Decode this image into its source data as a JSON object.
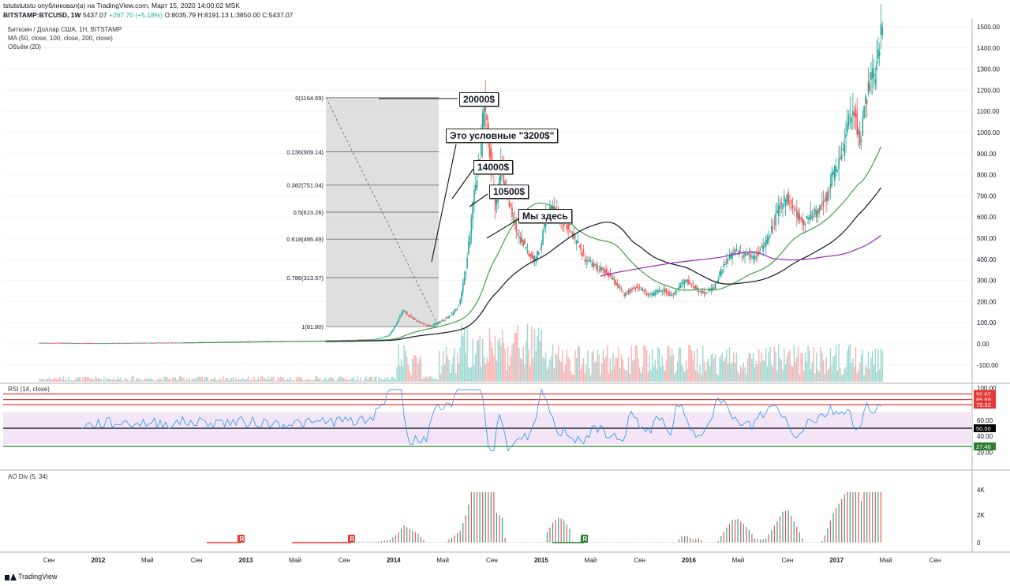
{
  "header": {
    "line1": "tstutstutstu опубликовал(а) на TradingView.com, Март 15, 2020 14:00:02 MSK",
    "symbol": "BITSTAMP:BTCUSD, 1W",
    "price": "5437.07",
    "change": "+267.70 (+5.18%)",
    "ohlc": "O:8035.79 H:8191.13 L:3850.00 C:5437.07"
  },
  "legend": {
    "main_title": "Биткоин / Доллар США, 1Н, BITSTAMP",
    "ma": "MA (50, close, 100, close, 200, close)",
    "volume": "Объём (20)",
    "rsi": "RSI (14, close)",
    "ao": "AO Div (5, 34)"
  },
  "callouts": {
    "c20000": "20000$",
    "c3200": "Это условные \"3200$\"",
    "c14000": "14000$",
    "c10500": "10500$",
    "here": "Мы здесь"
  },
  "brand": "TradingView",
  "colors": {
    "up": "#26a69a",
    "down": "#ef5350",
    "ma50": "#43a047",
    "ma100": "#131722",
    "ma200": "#9c27b0",
    "rsi_line": "#2196f3",
    "rsi_band": "#f3e5f5",
    "fib_zone": "#d9d9d9"
  },
  "chart_data": [
    {
      "type": "candlestick",
      "title": "Биткоин / Доллар США, 1Н, BITSTAMP",
      "y_ticks": [
        "1500.00",
        "1400.00",
        "1300.00",
        "1200.00",
        "1100.00",
        "1000.00",
        "900.00",
        "800.00",
        "700.00",
        "600.00",
        "500.00",
        "400.00",
        "300.00",
        "200.00",
        "100.00",
        "0.00",
        "-100.00"
      ],
      "x_ticks": [
        "Сен",
        "2012",
        "Май",
        "Сен",
        "2013",
        "Май",
        "Сен",
        "2014",
        "Май",
        "Сен",
        "2015",
        "Май",
        "Сен",
        "2016",
        "Май",
        "Сен",
        "2017",
        "Май",
        "Сен"
      ],
      "price_path": [
        [
          0,
          5
        ],
        [
          20,
          4
        ],
        [
          40,
          3
        ],
        [
          60,
          4
        ],
        [
          80,
          5
        ],
        [
          100,
          6
        ],
        [
          120,
          8
        ],
        [
          140,
          10
        ],
        [
          160,
          12
        ],
        [
          180,
          13
        ],
        [
          200,
          14
        ],
        [
          220,
          18
        ],
        [
          240,
          22
        ],
        [
          250,
          40
        ],
        [
          255,
          90
        ],
        [
          260,
          160
        ],
        [
          265,
          130
        ],
        [
          270,
          110
        ],
        [
          275,
          95
        ],
        [
          280,
          85
        ],
        [
          285,
          100
        ],
        [
          290,
          115
        ],
        [
          295,
          140
        ],
        [
          300,
          180
        ],
        [
          305,
          350
        ],
        [
          310,
          650
        ],
        [
          315,
          900
        ],
        [
          318,
          1150
        ],
        [
          322,
          900
        ],
        [
          326,
          650
        ],
        [
          330,
          850
        ],
        [
          334,
          720
        ],
        [
          338,
          600
        ],
        [
          342,
          520
        ],
        [
          346,
          480
        ],
        [
          350,
          420
        ],
        [
          354,
          400
        ],
        [
          358,
          450
        ],
        [
          362,
          600
        ],
        [
          366,
          640
        ],
        [
          370,
          620
        ],
        [
          374,
          580
        ],
        [
          378,
          560
        ],
        [
          382,
          500
        ],
        [
          386,
          460
        ],
        [
          390,
          400
        ],
        [
          394,
          380
        ],
        [
          398,
          360
        ],
        [
          402,
          350
        ],
        [
          406,
          330
        ],
        [
          410,
          300
        ],
        [
          414,
          270
        ],
        [
          418,
          230
        ],
        [
          422,
          250
        ],
        [
          426,
          270
        ],
        [
          430,
          260
        ],
        [
          434,
          240
        ],
        [
          438,
          230
        ],
        [
          442,
          250
        ],
        [
          446,
          260
        ],
        [
          450,
          230
        ],
        [
          454,
          240
        ],
        [
          458,
          280
        ],
        [
          462,
          300
        ],
        [
          466,
          280
        ],
        [
          470,
          260
        ],
        [
          474,
          240
        ],
        [
          478,
          250
        ],
        [
          482,
          270
        ],
        [
          486,
          330
        ],
        [
          490,
          380
        ],
        [
          494,
          420
        ],
        [
          498,
          440
        ],
        [
          502,
          420
        ],
        [
          506,
          430
        ],
        [
          510,
          410
        ],
        [
          514,
          440
        ],
        [
          518,
          470
        ],
        [
          522,
          520
        ],
        [
          526,
          600
        ],
        [
          530,
          660
        ],
        [
          534,
          700
        ],
        [
          538,
          640
        ],
        [
          542,
          600
        ],
        [
          546,
          580
        ],
        [
          550,
          600
        ],
        [
          554,
          620
        ],
        [
          558,
          650
        ],
        [
          562,
          700
        ],
        [
          566,
          780
        ],
        [
          570,
          850
        ],
        [
          574,
          920
        ],
        [
          578,
          1050
        ],
        [
          582,
          1100
        ],
        [
          586,
          950
        ],
        [
          590,
          1150
        ],
        [
          594,
          1250
        ],
        [
          598,
          1300
        ],
        [
          602,
          1550
        ]
      ],
      "fib_levels": [
        {
          "label": "0(1164.69)",
          "value": 1164.69
        },
        {
          "label": "0.236(909.14)",
          "value": 909.14
        },
        {
          "label": "0.382(751.04)",
          "value": 751.04
        },
        {
          "label": "0.5(623.26)",
          "value": 623.26
        },
        {
          "label": "0.618(495.49)",
          "value": 495.49
        },
        {
          "label": "0.786(313.57)",
          "value": 313.57
        },
        {
          "label": "1(81.80)",
          "value": 81.8
        }
      ]
    },
    {
      "type": "line",
      "title": "RSI (14, close)",
      "y_ticks": [
        "100.00",
        "80.00",
        "60.00",
        "40.00",
        "20.00"
      ],
      "levels": [
        {
          "label": "92.67",
          "value": 92.67,
          "color": "#e53935"
        },
        {
          "label": "85.69",
          "value": 85.69,
          "color": "#e53935"
        },
        {
          "label": "79.32",
          "value": 79.32,
          "color": "#e53935"
        },
        {
          "label": "50.00",
          "value": 50.0,
          "color": "#000000"
        },
        {
          "label": "27.48",
          "value": 27.48,
          "color": "#2e7d32"
        }
      ]
    },
    {
      "type": "bar",
      "title": "AO Div (5, 34)",
      "y_ticks": [
        "4K",
        "2K",
        "0"
      ],
      "markers": [
        "R",
        "R",
        "R"
      ]
    }
  ]
}
